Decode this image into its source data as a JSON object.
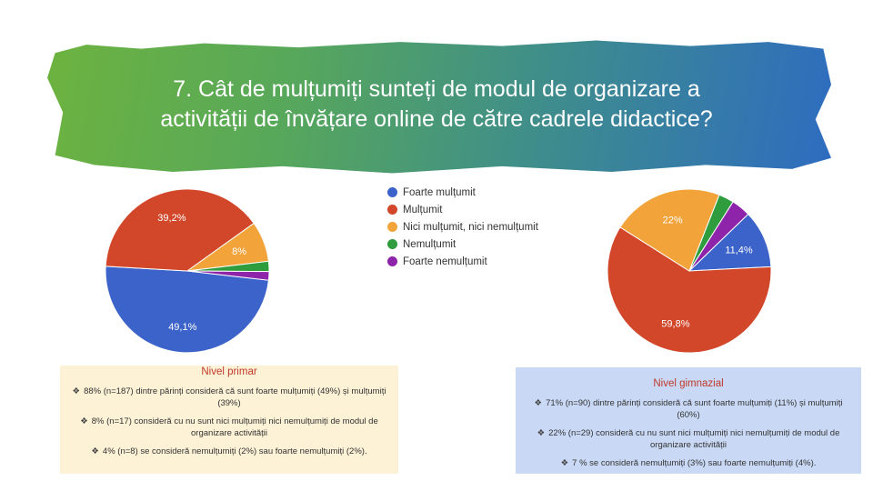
{
  "slide_title": {
    "line1": "7. Cât de mulțumiți sunteți de modul de organizare a",
    "line2": "activității de învățare online de către cadrele didactice?"
  },
  "legend": [
    {
      "label": "Foarte mulțumit",
      "color": "#3b63c9"
    },
    {
      "label": "Mulțumit",
      "color": "#d2472a"
    },
    {
      "label": "Nici mulțumit, nici nemulțumit",
      "color": "#f2a33a"
    },
    {
      "label": "Nemulțumit",
      "color": "#2f9c3e"
    },
    {
      "label": "Foarte nemulțumit",
      "color": "#8e24aa"
    }
  ],
  "chart_data": [
    {
      "type": "pie",
      "title": "",
      "slices": [
        {
          "label": "Foarte mulțumit",
          "value": 49.1,
          "display": "49,1%",
          "color": "#3b63c9"
        },
        {
          "label": "Mulțumit",
          "value": 39.2,
          "display": "39,2%",
          "color": "#d2472a"
        },
        {
          "label": "Nici mulțumit, nici nemulțumit",
          "value": 8,
          "display": "8%",
          "color": "#f2a33a"
        },
        {
          "label": "Nemulțumit",
          "value": 2,
          "display": "",
          "color": "#2f9c3e"
        },
        {
          "label": "Foarte nemulțumit",
          "value": 1.7,
          "display": "",
          "color": "#8e24aa"
        }
      ]
    },
    {
      "type": "pie",
      "title": "",
      "slices": [
        {
          "label": "Foarte mulțumit",
          "value": 11.4,
          "display": "11,4%",
          "color": "#3b63c9"
        },
        {
          "label": "Mulțumit",
          "value": 59.8,
          "display": "59,8%",
          "color": "#d2472a"
        },
        {
          "label": "Nici mulțumit, nici nemulțumit",
          "value": 22,
          "display": "22%",
          "color": "#f2a33a"
        },
        {
          "label": "Nemulțumit",
          "value": 3,
          "display": "",
          "color": "#2f9c3e"
        },
        {
          "label": "Foarte nemulțumit",
          "value": 3.8,
          "display": "",
          "color": "#8e24aa"
        }
      ]
    }
  ],
  "primar": {
    "title": "Nivel primar",
    "bullets": [
      "88% (n=187) dintre părinți consideră că sunt foarte mulțumiți (49%) și mulțumiți (39%)",
      "8% (n=17) consideră cu nu sunt nici mulțumiți nici nemulțumiți de modul de organizare activității",
      "4% (n=8) se consideră nemulțumiți (2%) sau foarte nemulțumiți (2%)."
    ]
  },
  "gimnazial": {
    "title": "Nivel gimnazial",
    "bullets": [
      "71% (n=90) dintre părinți consideră că sunt foarte mulțumiți (11%) și mulțumiți (60%)",
      "22% (n=29) consideră cu nu sunt nici mulțumiți nici nemulțumiți de modul de organizare activității",
      "7 % se consideră nemulțumiți (3%) sau foarte nemulțumiți (4%)."
    ]
  }
}
